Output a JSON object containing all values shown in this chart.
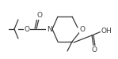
{
  "bg_color": "#ffffff",
  "line_color": "#3a3a3a",
  "lw": 0.9,
  "fs": 6.5,
  "figw": 1.49,
  "figh": 0.75,
  "dpi": 100,
  "xlim": [
    0,
    149
  ],
  "ylim": [
    0,
    75
  ]
}
